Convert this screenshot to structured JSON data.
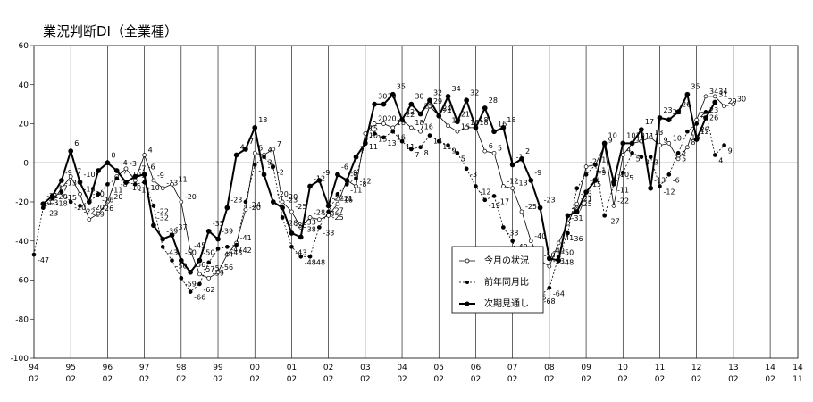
{
  "chart_data": {
    "type": "line",
    "title": "業況判断DI（全業種）",
    "xlabel": "",
    "ylabel": "",
    "ylim": [
      -100,
      60
    ],
    "y_ticks": [
      -100,
      -80,
      -60,
      -40,
      -20,
      0,
      20,
      40,
      60
    ],
    "x_range": [
      0,
      82
    ],
    "x_ticks": [
      {
        "pos": 0,
        "year": "94",
        "month": "02"
      },
      {
        "pos": 4,
        "year": "95",
        "month": "02"
      },
      {
        "pos": 8,
        "year": "96",
        "month": "02"
      },
      {
        "pos": 12,
        "year": "97",
        "month": "02"
      },
      {
        "pos": 16,
        "year": "98",
        "month": "02"
      },
      {
        "pos": 20,
        "year": "99",
        "month": "02"
      },
      {
        "pos": 24,
        "year": "00",
        "month": "02"
      },
      {
        "pos": 28,
        "year": "01",
        "month": "02"
      },
      {
        "pos": 32,
        "year": "02",
        "month": "02"
      },
      {
        "pos": 36,
        "year": "03",
        "month": "02"
      },
      {
        "pos": 40,
        "year": "04",
        "month": "02"
      },
      {
        "pos": 44,
        "year": "05",
        "month": "02"
      },
      {
        "pos": 48,
        "year": "06",
        "month": "02"
      },
      {
        "pos": 52,
        "year": "07",
        "month": "02"
      },
      {
        "pos": 56,
        "year": "08",
        "month": "02"
      },
      {
        "pos": 60,
        "year": "09",
        "month": "02"
      },
      {
        "pos": 64,
        "year": "10",
        "month": "02"
      },
      {
        "pos": 68,
        "year": "11",
        "month": "02"
      },
      {
        "pos": 72,
        "year": "12",
        "month": "02"
      },
      {
        "pos": 76,
        "year": "13",
        "month": "02"
      },
      {
        "pos": 80,
        "year": "14",
        "month": "02"
      },
      {
        "pos": 83,
        "year": "14",
        "month": "11"
      }
    ],
    "grid": "vertical lines at year ticks; horizontal zero line",
    "legend": "center-right boxed",
    "series": [
      {
        "name": "今月の状況",
        "style": "open-circle-thin",
        "points": [
          [
            1,
            -23
          ],
          [
            2,
            -20
          ],
          [
            3,
            -13
          ],
          [
            4,
            -7
          ],
          [
            5,
            -16
          ],
          [
            6,
            -29
          ],
          [
            7,
            -26
          ],
          [
            8,
            -20
          ],
          [
            9,
            -7
          ],
          [
            10,
            -3
          ],
          [
            11,
            -9
          ],
          [
            12,
            4
          ],
          [
            13,
            -9
          ],
          [
            14,
            -13
          ],
          [
            15,
            -11
          ],
          [
            16,
            -20
          ],
          [
            17,
            -45
          ],
          [
            18,
            -57
          ],
          [
            19,
            -59
          ],
          [
            20,
            -56
          ],
          [
            21,
            -47
          ],
          [
            22,
            -41
          ],
          [
            23,
            -24
          ],
          [
            24,
            5
          ],
          [
            25,
            4
          ],
          [
            26,
            7
          ],
          [
            27,
            -20
          ],
          [
            28,
            -25
          ],
          [
            29,
            -33
          ],
          [
            30,
            -28
          ],
          [
            31,
            -29
          ],
          [
            32,
            -27
          ],
          [
            33,
            -21
          ],
          [
            34,
            -9
          ],
          [
            35,
            -12
          ],
          [
            36,
            15
          ],
          [
            37,
            20
          ],
          [
            38,
            20
          ],
          [
            39,
            18
          ],
          [
            40,
            22
          ],
          [
            41,
            18
          ],
          [
            42,
            16
          ],
          [
            43,
            29
          ],
          [
            44,
            24
          ],
          [
            45,
            19
          ],
          [
            46,
            16
          ],
          [
            47,
            18
          ],
          [
            48,
            18
          ],
          [
            49,
            6
          ],
          [
            50,
            5
          ],
          [
            51,
            -12
          ],
          [
            52,
            -13
          ],
          [
            53,
            -25
          ],
          [
            54,
            -40
          ],
          [
            55,
            -50
          ],
          [
            56,
            -53
          ],
          [
            57,
            -41
          ],
          [
            58,
            -31
          ],
          [
            59,
            -21
          ],
          [
            60,
            -2
          ],
          [
            61,
            -1
          ],
          [
            62,
            9
          ],
          [
            63,
            -22
          ],
          [
            64,
            4
          ],
          [
            65,
            10
          ],
          [
            66,
            11
          ],
          [
            67,
            13
          ],
          [
            68,
            9
          ],
          [
            69,
            10
          ],
          [
            70,
            2
          ],
          [
            71,
            8
          ],
          [
            72,
            22
          ],
          [
            73,
            34
          ],
          [
            74,
            34
          ],
          [
            75,
            29
          ],
          [
            76,
            30
          ]
        ]
      },
      {
        "name": "前年同月比",
        "style": "filled-dot-dashed",
        "points": [
          [
            0,
            -47
          ],
          [
            1,
            -23
          ],
          [
            2,
            -18
          ],
          [
            3,
            -15
          ],
          [
            4,
            -20
          ],
          [
            5,
            -22
          ],
          [
            6,
            -20
          ],
          [
            7,
            -16
          ],
          [
            8,
            -11
          ],
          [
            9,
            -8
          ],
          [
            10,
            -10
          ],
          [
            11,
            -11
          ],
          [
            12,
            -10
          ],
          [
            13,
            -22
          ],
          [
            14,
            -43
          ],
          [
            15,
            -50
          ],
          [
            16,
            -59
          ],
          [
            17,
            -66
          ],
          [
            18,
            -62
          ],
          [
            19,
            -51
          ],
          [
            20,
            -44
          ],
          [
            21,
            -43
          ],
          [
            22,
            -42
          ],
          [
            23,
            -20
          ],
          [
            24,
            -1
          ],
          [
            25,
            3
          ],
          [
            26,
            -2
          ],
          [
            27,
            -28
          ],
          [
            28,
            -43
          ],
          [
            29,
            -48
          ],
          [
            30,
            -48
          ],
          [
            31,
            -33
          ],
          [
            32,
            -25
          ],
          [
            33,
            -16
          ],
          [
            34,
            -11
          ],
          [
            35,
            -8
          ],
          [
            36,
            11
          ],
          [
            37,
            15
          ],
          [
            38,
            13
          ],
          [
            39,
            16
          ],
          [
            40,
            11
          ],
          [
            41,
            7
          ],
          [
            42,
            8
          ],
          [
            43,
            14
          ],
          [
            44,
            11
          ],
          [
            45,
            9
          ],
          [
            46,
            5
          ],
          [
            47,
            -3
          ],
          [
            48,
            -12
          ],
          [
            49,
            -19
          ],
          [
            50,
            -17
          ],
          [
            51,
            -33
          ],
          [
            52,
            -40
          ],
          [
            53,
            -56
          ],
          [
            54,
            -66
          ],
          [
            55,
            -68
          ],
          [
            56,
            -64
          ],
          [
            57,
            -48
          ],
          [
            58,
            -36
          ],
          [
            59,
            -13
          ],
          [
            60,
            -6
          ],
          [
            61,
            -1
          ],
          [
            62,
            -27
          ],
          [
            63,
            -11
          ],
          [
            64,
            -5
          ],
          [
            65,
            5
          ],
          [
            66,
            3
          ],
          [
            67,
            3
          ],
          [
            68,
            -12
          ],
          [
            69,
            -6
          ],
          [
            70,
            5
          ],
          [
            71,
            16
          ],
          [
            72,
            20
          ],
          [
            73,
            26
          ],
          [
            74,
            4
          ],
          [
            75,
            9
          ]
        ]
      },
      {
        "name": "次期見通し",
        "style": "filled-dot-thick",
        "points": [
          [
            1,
            -21
          ],
          [
            2,
            -17
          ],
          [
            3,
            -9
          ],
          [
            4,
            6
          ],
          [
            5,
            -10
          ],
          [
            6,
            -20
          ],
          [
            7,
            -4
          ],
          [
            8,
            0
          ],
          [
            9,
            -4
          ],
          [
            10,
            -10
          ],
          [
            11,
            -7
          ],
          [
            12,
            -6
          ],
          [
            13,
            -32
          ],
          [
            14,
            -39
          ],
          [
            15,
            -37
          ],
          [
            16,
            -50
          ],
          [
            17,
            -56
          ],
          [
            18,
            -50
          ],
          [
            19,
            -35
          ],
          [
            20,
            -39
          ],
          [
            21,
            -23
          ],
          [
            22,
            4
          ],
          [
            23,
            7
          ],
          [
            24,
            18
          ],
          [
            25,
            -6
          ],
          [
            26,
            -20
          ],
          [
            27,
            -23
          ],
          [
            28,
            -36
          ],
          [
            29,
            -38
          ],
          [
            30,
            -12
          ],
          [
            31,
            -9
          ],
          [
            32,
            -22
          ],
          [
            33,
            -6
          ],
          [
            34,
            -9
          ],
          [
            35,
            3
          ],
          [
            36,
            10
          ],
          [
            37,
            30
          ],
          [
            38,
            30
          ],
          [
            39,
            35
          ],
          [
            40,
            22
          ],
          [
            41,
            30
          ],
          [
            42,
            25
          ],
          [
            43,
            32
          ],
          [
            44,
            24
          ],
          [
            45,
            34
          ],
          [
            46,
            21
          ],
          [
            47,
            32
          ],
          [
            48,
            18
          ],
          [
            49,
            28
          ],
          [
            50,
            16
          ],
          [
            51,
            18
          ],
          [
            52,
            -1
          ],
          [
            53,
            2
          ],
          [
            54,
            -9
          ],
          [
            55,
            -23
          ],
          [
            56,
            -49
          ],
          [
            57,
            -50
          ],
          [
            58,
            -27
          ],
          [
            59,
            -25
          ],
          [
            60,
            -15
          ],
          [
            61,
            -9
          ],
          [
            62,
            10
          ],
          [
            63,
            -10
          ],
          [
            64,
            10
          ],
          [
            65,
            10
          ],
          [
            66,
            17
          ],
          [
            67,
            -13
          ],
          [
            68,
            23
          ],
          [
            69,
            22
          ],
          [
            70,
            26
          ],
          [
            71,
            35
          ],
          [
            72,
            12
          ],
          [
            73,
            23
          ],
          [
            74,
            31
          ]
        ]
      }
    ]
  }
}
